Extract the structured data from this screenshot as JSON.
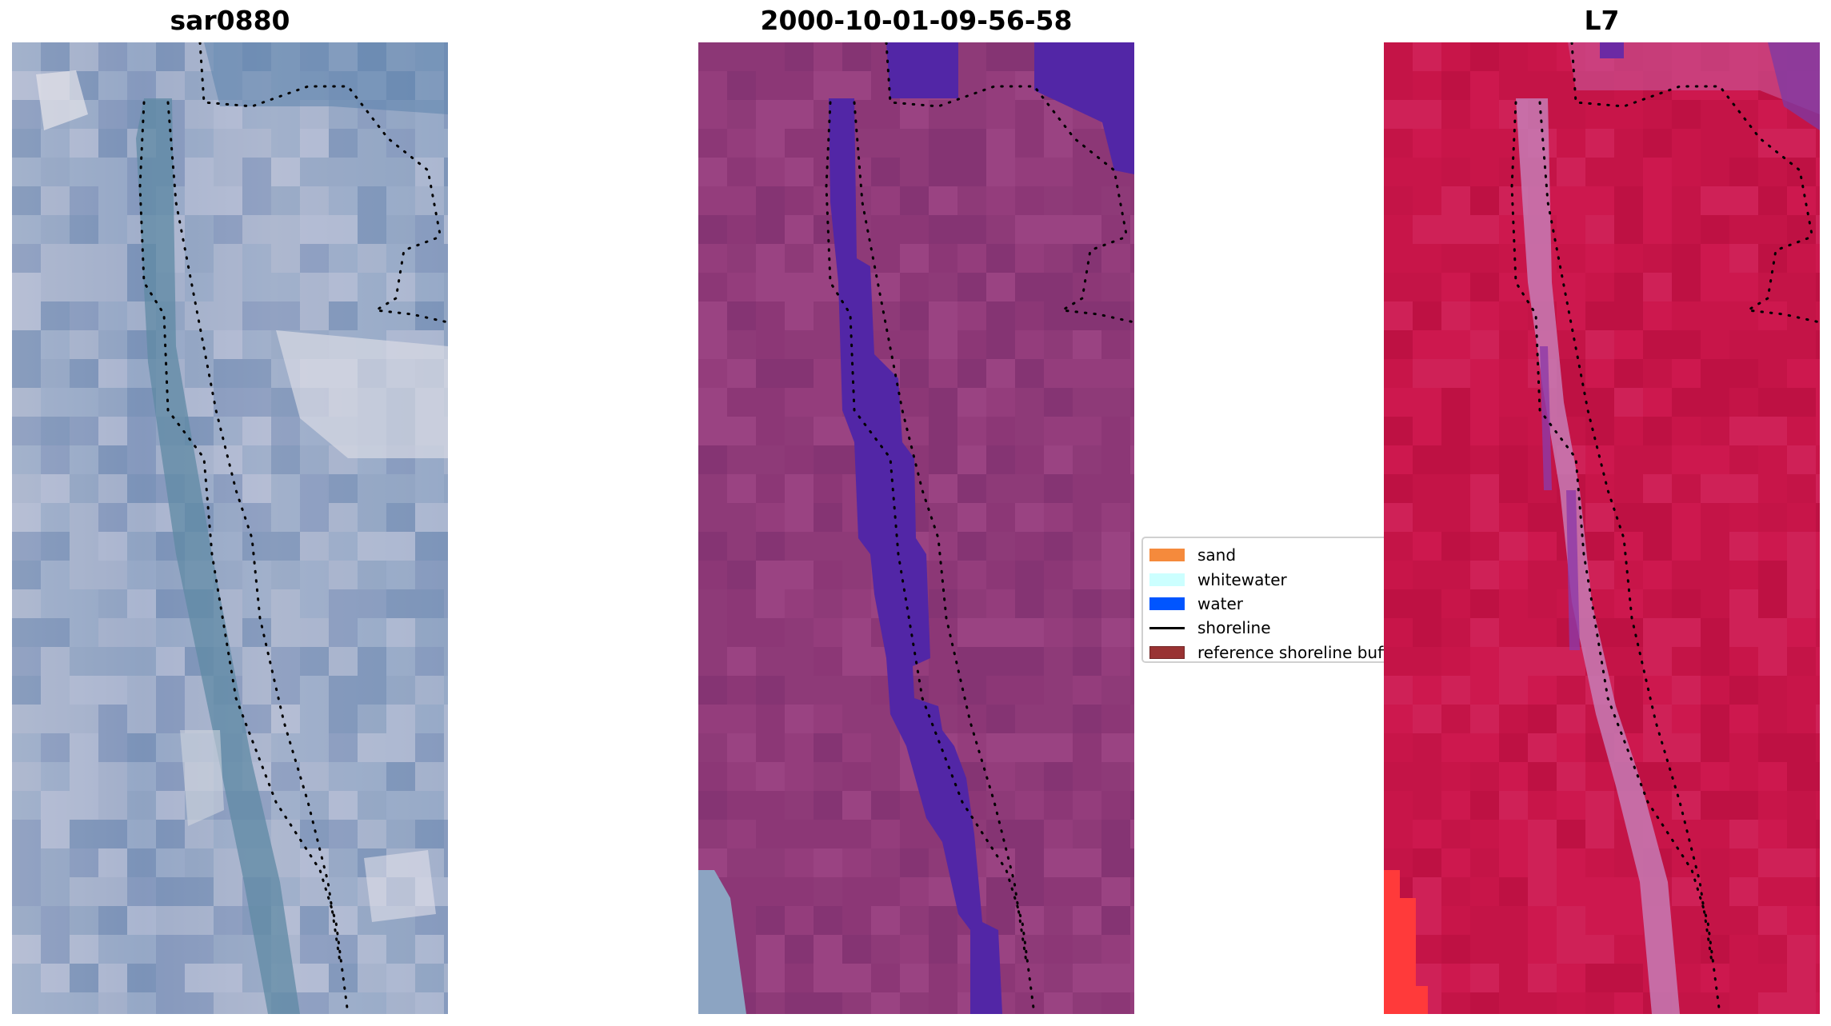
{
  "panels": {
    "rgb": {
      "title": "sar0880"
    },
    "classification": {
      "title": "2000-10-01-09-56-58"
    },
    "index": {
      "title": "L7"
    }
  },
  "legend": {
    "items": [
      {
        "label": "sand",
        "color": "#f58a3c",
        "kind": "patch"
      },
      {
        "label": "whitewater",
        "color": "#ccffff",
        "kind": "patch"
      },
      {
        "label": "water",
        "color": "#0055ff",
        "kind": "patch"
      },
      {
        "label": "shoreline",
        "color": "#000000",
        "kind": "line"
      },
      {
        "label": "reference shoreline buffer",
        "color": "#993333",
        "kind": "patch"
      }
    ]
  }
}
